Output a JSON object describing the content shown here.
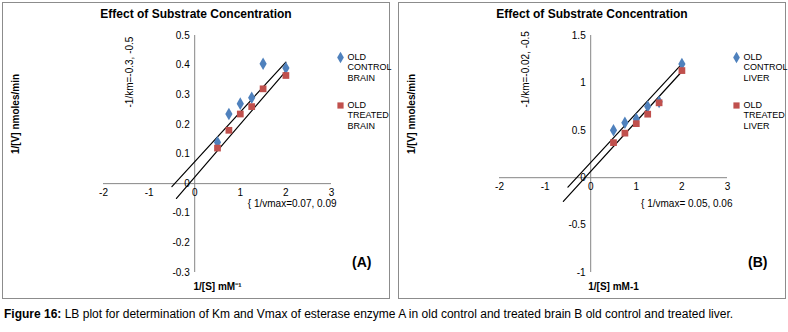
{
  "chart_data": [
    {
      "type": "scatter",
      "title": "Effect of Substrate Concentration",
      "x_label": "1/[S] mM⁻¹",
      "y_label": "1/[V] nmoles/min",
      "xlim": [
        -2,
        3
      ],
      "xticks": [
        -2,
        -1,
        0,
        1,
        2,
        3
      ],
      "ylim": [
        -0.3,
        0.5
      ],
      "yticks": [
        -0.3,
        -0.2,
        -0.1,
        0,
        0.1,
        0.2,
        0.3,
        0.4,
        0.5
      ],
      "series": [
        {
          "name": "OLD CONTROL BRAIN",
          "color": "#4f81bd",
          "marker": "diamond",
          "x": [
            0.5,
            0.75,
            1,
            1.25,
            1.5,
            2
          ],
          "values": [
            0.14,
            0.235,
            0.27,
            0.29,
            0.405,
            0.39
          ]
        },
        {
          "name": "OLD TREATED BRAIN",
          "color": "#c0504d",
          "marker": "square",
          "x": [
            0.5,
            0.75,
            1,
            1.25,
            1.5,
            2
          ],
          "values": [
            0.12,
            0.18,
            0.235,
            0.26,
            0.32,
            0.365
          ]
        },
        {
          "type": "line",
          "color": "#000000",
          "x": [
            -0.5,
            2
          ],
          "values": [
            -0.01,
            0.41
          ]
        },
        {
          "type": "line",
          "color": "#000000",
          "x": [
            -0.4,
            2
          ],
          "values": [
            -0.05,
            0.38
          ]
        }
      ],
      "annotations": [
        "-1/km=-0.3, -0.5",
        "{ 1/vmax=0.07, 0.09"
      ],
      "panel_label": "(A)"
    },
    {
      "type": "scatter",
      "title": "Effect of Substrate Concentration",
      "x_label": "1/[S] mM-1",
      "y_label": "1/[V] nmoles/min",
      "xlim": [
        -2,
        3
      ],
      "xticks": [
        -2,
        -1,
        0,
        1,
        2,
        3
      ],
      "ylim": [
        -1,
        1.5
      ],
      "yticks": [
        -1,
        -0.5,
        0,
        0.5,
        1,
        1.5
      ],
      "series": [
        {
          "name": "OLD CONTROL LIVER",
          "color": "#4f81bd",
          "marker": "diamond",
          "x": [
            0.5,
            0.75,
            1,
            1.25,
            1.5,
            2
          ],
          "values": [
            0.5,
            0.58,
            0.62,
            0.75,
            0.8,
            1.2
          ]
        },
        {
          "name": "OLD TREATED LIVER",
          "color": "#c0504d",
          "marker": "square",
          "x": [
            0.5,
            0.75,
            1,
            1.25,
            1.5,
            2
          ],
          "values": [
            0.37,
            0.47,
            0.57,
            0.67,
            0.79,
            1.13
          ]
        },
        {
          "type": "line",
          "color": "#000000",
          "x": [
            -0.5,
            2
          ],
          "values": [
            -0.1,
            1.2
          ]
        },
        {
          "type": "line",
          "color": "#000000",
          "x": [
            -0.6,
            2
          ],
          "values": [
            -0.25,
            1.12
          ]
        }
      ],
      "annotations": [
        "-1/km=-0.02, -0.5",
        "{ 1/vmax= 0.05, 0.06"
      ],
      "panel_label": "(B)"
    }
  ],
  "caption": {
    "label": "Figure 16:",
    "text": "LB plot for determination of Km and Vmax of esterase enzyme A in old control and treated brain B old control and treated liver."
  }
}
